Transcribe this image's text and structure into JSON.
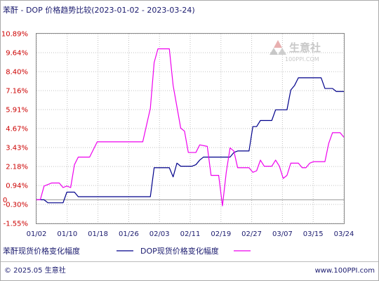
{
  "chart_data": {
    "type": "line",
    "title": "苯酐 - DOP 价格趋势比较(2023-01-02 - 2023-03-24)",
    "x_ticks": [
      "01/02",
      "01/10",
      "01/18",
      "01/26",
      "02/03",
      "02/11",
      "02/19",
      "02/27",
      "03/07",
      "03/15",
      "03/24"
    ],
    "y_ticks": [
      "10.89%",
      "9.64%",
      "8.40%",
      "7.16%",
      "5.91%",
      "4.67%",
      "3.43%",
      "2.18%",
      "0.94%",
      "-0.30%",
      "-1.55%"
    ],
    "y_zero_label": "0",
    "ylim": [
      -1.55,
      10.89
    ],
    "grid": true,
    "legend_position": "bottom",
    "series": [
      {
        "name": "苯酐现货价格变化幅度",
        "color": "#00008b",
        "points": [
          [
            "2023-01-02",
            0
          ],
          [
            "2023-01-04",
            0
          ],
          [
            "2023-01-05",
            -0.2
          ],
          [
            "2023-01-09",
            -0.2
          ],
          [
            "2023-01-10",
            0.5
          ],
          [
            "2023-01-12",
            0.5
          ],
          [
            "2023-01-13",
            0.2
          ],
          [
            "2023-02-01",
            0.2
          ],
          [
            "2023-02-02",
            2.1
          ],
          [
            "2023-02-06",
            2.1
          ],
          [
            "2023-02-07",
            1.5
          ],
          [
            "2023-02-08",
            2.4
          ],
          [
            "2023-02-09",
            2.2
          ],
          [
            "2023-02-12",
            2.2
          ],
          [
            "2023-02-13",
            2.3
          ],
          [
            "2023-02-14",
            2.6
          ],
          [
            "2023-02-15",
            2.8
          ],
          [
            "2023-02-22",
            2.8
          ],
          [
            "2023-02-23",
            3.1
          ],
          [
            "2023-02-24",
            3.2
          ],
          [
            "2023-02-27",
            3.2
          ],
          [
            "2023-02-28",
            4.8
          ],
          [
            "2023-03-01",
            4.8
          ],
          [
            "2023-03-02",
            5.2
          ],
          [
            "2023-03-05",
            5.2
          ],
          [
            "2023-03-06",
            5.9
          ],
          [
            "2023-03-09",
            5.9
          ],
          [
            "2023-03-10",
            7.2
          ],
          [
            "2023-03-11",
            7.5
          ],
          [
            "2023-03-12",
            8.0
          ],
          [
            "2023-03-18",
            8.0
          ],
          [
            "2023-03-19",
            7.3
          ],
          [
            "2023-03-21",
            7.3
          ],
          [
            "2023-03-22",
            7.1
          ],
          [
            "2023-03-24",
            7.1
          ]
        ]
      },
      {
        "name": "DOP现货价格变化幅度",
        "color": "#ee00ee",
        "points": [
          [
            "2023-01-02",
            0
          ],
          [
            "2023-01-03",
            0
          ],
          [
            "2023-01-04",
            0.9
          ],
          [
            "2023-01-05",
            1.0
          ],
          [
            "2023-01-06",
            1.1
          ],
          [
            "2023-01-08",
            1.1
          ],
          [
            "2023-01-09",
            0.8
          ],
          [
            "2023-01-10",
            0.9
          ],
          [
            "2023-01-11",
            0.8
          ],
          [
            "2023-01-12",
            2.3
          ],
          [
            "2023-01-13",
            2.8
          ],
          [
            "2023-01-16",
            2.8
          ],
          [
            "2023-01-18",
            3.8
          ],
          [
            "2023-01-30",
            3.8
          ],
          [
            "2023-02-01",
            6.0
          ],
          [
            "2023-02-02",
            9.0
          ],
          [
            "2023-02-03",
            9.9
          ],
          [
            "2023-02-06",
            9.9
          ],
          [
            "2023-02-07",
            7.5
          ],
          [
            "2023-02-09",
            4.7
          ],
          [
            "2023-02-10",
            4.5
          ],
          [
            "2023-02-11",
            3.1
          ],
          [
            "2023-02-13",
            3.1
          ],
          [
            "2023-02-14",
            3.6
          ],
          [
            "2023-02-16",
            3.5
          ],
          [
            "2023-02-17",
            1.6
          ],
          [
            "2023-02-19",
            1.6
          ],
          [
            "2023-02-20",
            -0.4
          ],
          [
            "2023-02-21",
            1.8
          ],
          [
            "2023-02-22",
            3.4
          ],
          [
            "2023-02-23",
            3.2
          ],
          [
            "2023-02-24",
            2.1
          ],
          [
            "2023-02-27",
            2.1
          ],
          [
            "2023-02-28",
            1.8
          ],
          [
            "2023-03-01",
            1.9
          ],
          [
            "2023-03-02",
            2.6
          ],
          [
            "2023-03-03",
            2.2
          ],
          [
            "2023-03-05",
            2.2
          ],
          [
            "2023-03-06",
            2.6
          ],
          [
            "2023-03-07",
            2.2
          ],
          [
            "2023-03-08",
            1.4
          ],
          [
            "2023-03-09",
            1.6
          ],
          [
            "2023-03-10",
            2.4
          ],
          [
            "2023-03-12",
            2.4
          ],
          [
            "2023-03-13",
            2.1
          ],
          [
            "2023-03-14",
            2.1
          ],
          [
            "2023-03-15",
            2.4
          ],
          [
            "2023-03-16",
            2.5
          ],
          [
            "2023-03-19",
            2.5
          ],
          [
            "2023-03-20",
            3.7
          ],
          [
            "2023-03-21",
            4.4
          ],
          [
            "2023-03-23",
            4.4
          ],
          [
            "2023-03-24",
            4.1
          ]
        ]
      }
    ]
  },
  "watermark": {
    "brand": "生意社",
    "url": "100PPI.COM"
  },
  "footer": {
    "copyright": "© 2025.05 生意社",
    "site": "www.100PPI.com"
  }
}
